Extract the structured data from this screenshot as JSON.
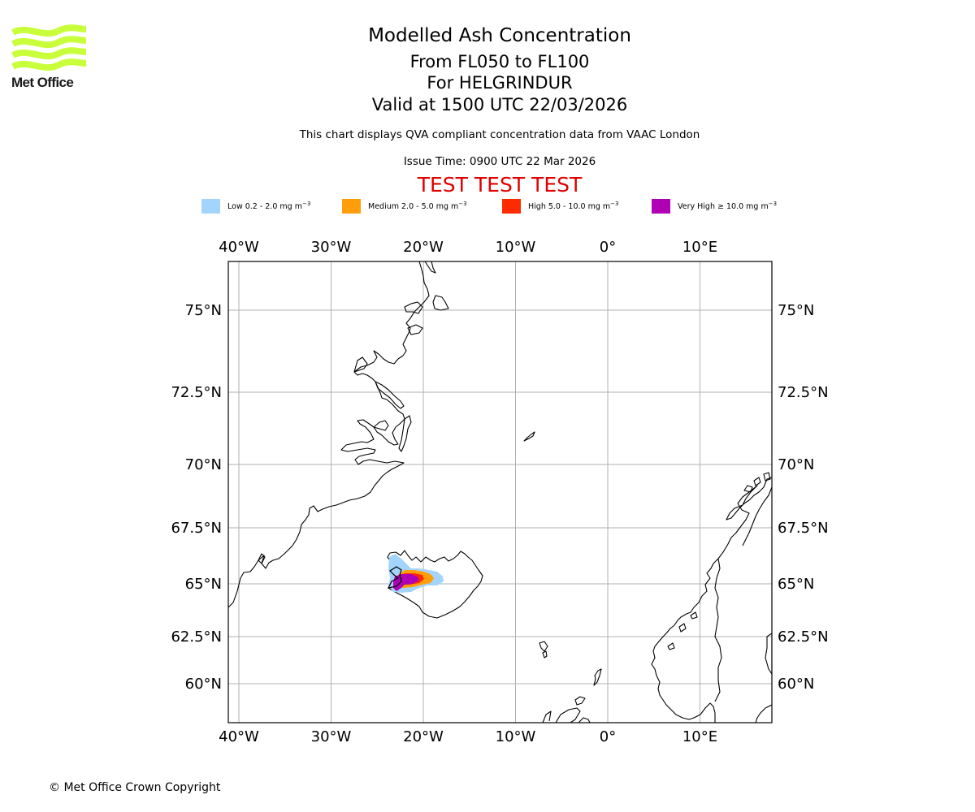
{
  "logo": {
    "brand": "Met Office",
    "wave_color": "#c8ff3a"
  },
  "header": {
    "title": "Modelled Ash Concentration",
    "levels": "From FL050 to FL100",
    "volcano": "For HELGRINDUR",
    "valid": "Valid at 1500 UTC 22/03/2026",
    "compliance": "This chart displays QVA compliant concentration data from VAAC London",
    "issue_time": "Issue Time: 0900 UTC 22 Mar 2026",
    "test_banner": "TEST TEST TEST",
    "test_color": "#e00000"
  },
  "legend": [
    {
      "label": "Low 0.2 - 2.0 mg m",
      "unit_exp": "−3",
      "color": "#a3d4fb"
    },
    {
      "label": "Medium 2.0 - 5.0 mg m",
      "unit_exp": "−3",
      "color": "#ff9e0a"
    },
    {
      "label": "High 5.0 - 10.0 mg m",
      "unit_exp": "−3",
      "color": "#ff2a00"
    },
    {
      "label": "Very High ≥ 10.0 mg m",
      "unit_exp": "−3",
      "color": "#b000b5"
    }
  ],
  "map": {
    "lon_ticks": [
      {
        "lon": -40,
        "label": "40°W"
      },
      {
        "lon": -30,
        "label": "30°W"
      },
      {
        "lon": -20,
        "label": "20°W"
      },
      {
        "lon": -10,
        "label": "10°W"
      },
      {
        "lon": 0,
        "label": "0°"
      },
      {
        "lon": 10,
        "label": "10°E"
      }
    ],
    "lat_ticks": [
      {
        "lat": 75,
        "label": "75°N"
      },
      {
        "lat": 72.5,
        "label": "72.5°N"
      },
      {
        "lat": 70,
        "label": "70°N"
      },
      {
        "lat": 67.5,
        "label": "67.5°N"
      },
      {
        "lat": 65,
        "label": "65°N"
      },
      {
        "lat": 62.5,
        "label": "62.5°N"
      },
      {
        "lat": 60,
        "label": "60°N"
      }
    ]
  },
  "footer": {
    "copyright": "© Met Office Crown Copyright"
  }
}
